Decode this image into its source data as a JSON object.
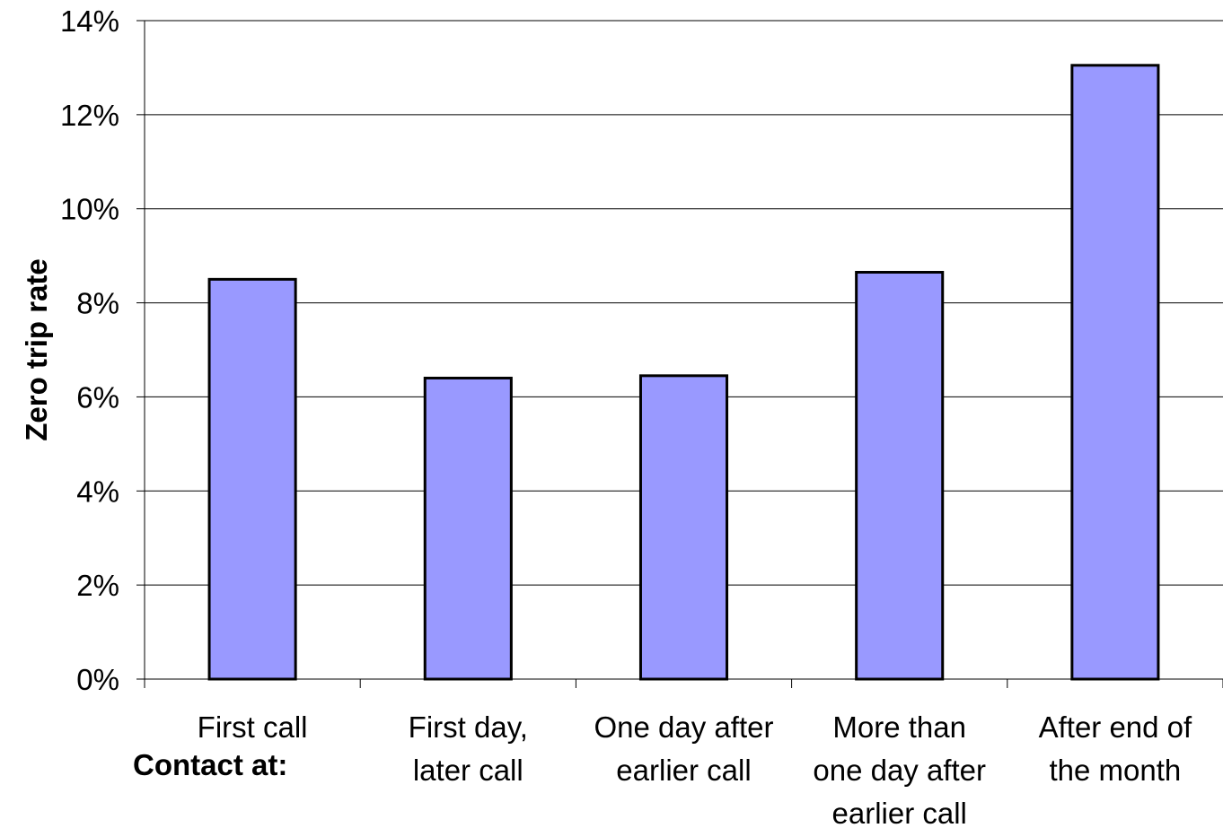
{
  "chart_data": {
    "type": "bar",
    "categories": [
      [
        "First call"
      ],
      [
        "First day,",
        "later call"
      ],
      [
        "One day after",
        "earlier call"
      ],
      [
        "More than",
        "one day after",
        "earlier call"
      ],
      [
        "After end of",
        "the month"
      ]
    ],
    "values": [
      8.5,
      6.4,
      6.45,
      8.65,
      13.05
    ],
    "ylabel": "Zero trip rate",
    "xlabel": "Contact at:",
    "ylim": [
      0,
      14
    ],
    "yticks": [
      0,
      2,
      4,
      6,
      8,
      10,
      12,
      14
    ],
    "ytick_labels": [
      "0%",
      "2%",
      "4%",
      "6%",
      "8%",
      "10%",
      "12%",
      "14%"
    ],
    "grid": true,
    "bar_color": "#9999ff",
    "bar_edge_color": "#000000"
  }
}
